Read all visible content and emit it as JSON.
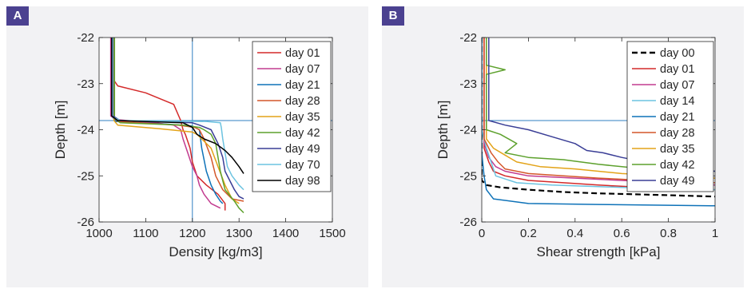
{
  "panels": [
    {
      "label": "A"
    },
    {
      "label": "B"
    }
  ],
  "chart_data": [
    {
      "type": "line",
      "xlabel": "Density [kg/m3]",
      "ylabel": "Depth [m]",
      "xlim": [
        1000,
        1500
      ],
      "ylim": [
        -26,
        -22
      ],
      "xticks": [
        1000,
        1100,
        1200,
        1300,
        1400,
        1500
      ],
      "yticks": [
        -26,
        -25,
        -24,
        -23,
        -22
      ],
      "grid": false,
      "legend_position": "top-right",
      "reference_lines": {
        "x": 1200,
        "y": -23.8
      },
      "series": [
        {
          "name": "day 01",
          "color": "#d42a2a",
          "x": [
            1030,
            1030,
            1040,
            1100,
            1160,
            1175,
            1180,
            1185,
            1195,
            1200,
            1210,
            1230,
            1255,
            1270,
            1270
          ],
          "y": [
            -22.0,
            -22.9,
            -23.05,
            -23.2,
            -23.45,
            -23.8,
            -24.0,
            -24.1,
            -24.4,
            -24.7,
            -25.0,
            -25.2,
            -25.4,
            -25.6,
            -25.75
          ]
        },
        {
          "name": "day 07",
          "color": "#c23b8f",
          "x": [
            1025,
            1025,
            1035,
            1120,
            1160,
            1175,
            1180,
            1190,
            1200,
            1210,
            1215,
            1225,
            1240,
            1260
          ],
          "y": [
            -22.0,
            -23.7,
            -23.78,
            -23.85,
            -23.9,
            -24.0,
            -24.2,
            -24.5,
            -24.8,
            -25.0,
            -25.2,
            -25.4,
            -25.6,
            -25.7
          ]
        },
        {
          "name": "day 21",
          "color": "#0e72b8",
          "x": [
            1028,
            1028,
            1035,
            1150,
            1200,
            1215,
            1220,
            1230,
            1240,
            1250,
            1260,
            1265
          ],
          "y": [
            -22.0,
            -23.7,
            -23.82,
            -23.88,
            -23.92,
            -24.0,
            -24.4,
            -24.9,
            -25.2,
            -25.4,
            -25.55,
            -25.6
          ]
        },
        {
          "name": "day 28",
          "color": "#d4572a",
          "x": [
            1030,
            1030,
            1040,
            1170,
            1205,
            1215,
            1225,
            1240,
            1250,
            1265,
            1285,
            1310
          ],
          "y": [
            -22.0,
            -23.7,
            -23.82,
            -23.9,
            -23.95,
            -24.0,
            -24.2,
            -24.6,
            -25.0,
            -25.3,
            -25.5,
            -25.55
          ]
        },
        {
          "name": "day 35",
          "color": "#e3a318",
          "x": [
            1032,
            1032,
            1040,
            1130,
            1200,
            1210,
            1220,
            1240,
            1255,
            1270,
            1285,
            1300
          ],
          "y": [
            -22.0,
            -23.8,
            -23.9,
            -23.98,
            -24.05,
            -24.1,
            -24.2,
            -24.4,
            -24.8,
            -25.2,
            -25.5,
            -25.6
          ]
        },
        {
          "name": "day 42",
          "color": "#5da12d",
          "x": [
            1033,
            1033,
            1045,
            1180,
            1215,
            1225,
            1240,
            1250,
            1260,
            1270,
            1290,
            1300,
            1310
          ],
          "y": [
            -22.0,
            -23.75,
            -23.85,
            -23.9,
            -23.95,
            -24.0,
            -24.1,
            -24.3,
            -24.9,
            -25.3,
            -25.55,
            -25.7,
            -25.8
          ]
        },
        {
          "name": "day 49",
          "color": "#3a3e96",
          "x": [
            1030,
            1030,
            1045,
            1200,
            1215,
            1240,
            1255,
            1265,
            1270,
            1280,
            1290,
            1300,
            1310
          ],
          "y": [
            -22.0,
            -23.7,
            -23.8,
            -23.85,
            -23.9,
            -24.0,
            -24.3,
            -24.6,
            -24.9,
            -25.1,
            -25.3,
            -25.45,
            -25.5
          ]
        },
        {
          "name": "day 70",
          "color": "#6cc3e0",
          "x": [
            1029,
            1029,
            1045,
            1230,
            1260,
            1262,
            1265,
            1270,
            1275,
            1285,
            1300,
            1310
          ],
          "y": [
            -22.0,
            -23.72,
            -23.8,
            -23.82,
            -23.85,
            -23.95,
            -24.2,
            -24.5,
            -24.8,
            -25.0,
            -25.2,
            -25.3
          ]
        },
        {
          "name": "day 98",
          "color": "#000000",
          "x": [
            1027,
            1027,
            1040,
            1180,
            1200,
            1210,
            1225,
            1250,
            1270,
            1285,
            1300,
            1310
          ],
          "y": [
            -22.0,
            -23.7,
            -23.8,
            -23.85,
            -23.95,
            -24.1,
            -24.2,
            -24.3,
            -24.45,
            -24.6,
            -24.8,
            -24.95
          ]
        }
      ]
    },
    {
      "type": "line",
      "xlabel": "Shear strength [kPa]",
      "ylabel": "Depth [m]",
      "xlim": [
        0,
        1
      ],
      "ylim": [
        -26,
        -22
      ],
      "xticks": [
        0,
        0.2,
        0.4,
        0.6,
        0.8,
        1
      ],
      "yticks": [
        -26,
        -25,
        -24,
        -23,
        -22
      ],
      "grid": false,
      "legend_position": "top-right",
      "reference_lines": {
        "y": -23.8
      },
      "series": [
        {
          "name": "day 00",
          "color": "#000000",
          "dashed": true,
          "x": [
            0.0,
            0.0,
            0.02,
            0.08,
            0.2,
            0.35,
            0.5,
            0.65,
            0.8,
            1.0
          ],
          "y": [
            -22.0,
            -25.1,
            -25.2,
            -25.25,
            -25.3,
            -25.35,
            -25.38,
            -25.4,
            -25.42,
            -25.45
          ]
        },
        {
          "name": "day 01",
          "color": "#d42a2a",
          "x": [
            0.01,
            0.01,
            0.03,
            0.05,
            0.1,
            0.2,
            0.35,
            0.5,
            0.7,
            1.0
          ],
          "y": [
            -22.0,
            -24.4,
            -24.7,
            -24.9,
            -25.0,
            -25.1,
            -25.15,
            -25.2,
            -25.25,
            -25.3
          ]
        },
        {
          "name": "day 07",
          "color": "#c23b8f",
          "x": [
            0.01,
            0.01,
            0.03,
            0.06,
            0.1,
            0.2,
            0.4,
            0.6,
            1.0
          ],
          "y": [
            -22.0,
            -24.3,
            -24.6,
            -24.8,
            -24.9,
            -25.0,
            -25.05,
            -25.1,
            -25.2
          ]
        },
        {
          "name": "day 14",
          "color": "#6cc3e0",
          "x": [
            0.0,
            0.0,
            0.02,
            0.04,
            0.06,
            0.15,
            0.3,
            0.6,
            1.0
          ],
          "y": [
            -22.0,
            -24.0,
            -24.4,
            -24.7,
            -25.0,
            -25.15,
            -25.2,
            -25.25,
            -25.3
          ]
        },
        {
          "name": "day 21",
          "color": "#0e72b8",
          "x": [
            0.0,
            0.0,
            0.01,
            0.02,
            0.05,
            0.2,
            0.5,
            1.0
          ],
          "y": [
            -22.0,
            -24.5,
            -25.0,
            -25.3,
            -25.5,
            -25.6,
            -25.62,
            -25.65
          ]
        },
        {
          "name": "day 28",
          "color": "#d4572a",
          "x": [
            0.01,
            0.01,
            0.04,
            0.07,
            0.1,
            0.2,
            0.35,
            0.5,
            0.7,
            1.0
          ],
          "y": [
            -22.0,
            -24.2,
            -24.5,
            -24.7,
            -24.85,
            -24.95,
            -25.0,
            -25.05,
            -25.1,
            -25.15
          ]
        },
        {
          "name": "day 35",
          "color": "#e3a318",
          "x": [
            0.02,
            0.02,
            0.05,
            0.1,
            0.15,
            0.25,
            0.4,
            0.6,
            0.8,
            1.0
          ],
          "y": [
            -22.0,
            -24.2,
            -24.4,
            -24.55,
            -24.7,
            -24.8,
            -24.85,
            -24.95,
            -25.0,
            -25.05
          ]
        },
        {
          "name": "day 42",
          "color": "#5da12d",
          "x": [
            0.02,
            0.02,
            0.1,
            0.02,
            0.02,
            0.08,
            0.15,
            0.1,
            0.2,
            0.35,
            0.5,
            0.7,
            1.0
          ],
          "y": [
            -22.0,
            -22.6,
            -22.7,
            -22.8,
            -24.0,
            -24.1,
            -24.3,
            -24.5,
            -24.6,
            -24.65,
            -24.75,
            -24.85,
            -24.9
          ]
        },
        {
          "name": "day 49",
          "color": "#3a3e96",
          "x": [
            0.03,
            0.03,
            0.1,
            0.2,
            0.3,
            0.4,
            0.45,
            0.52,
            0.6,
            0.7,
            0.8,
            1.0
          ],
          "y": [
            -22.0,
            -23.8,
            -23.9,
            -24.0,
            -24.15,
            -24.3,
            -24.45,
            -24.5,
            -24.6,
            -24.7,
            -24.8,
            -24.9
          ]
        }
      ]
    }
  ]
}
